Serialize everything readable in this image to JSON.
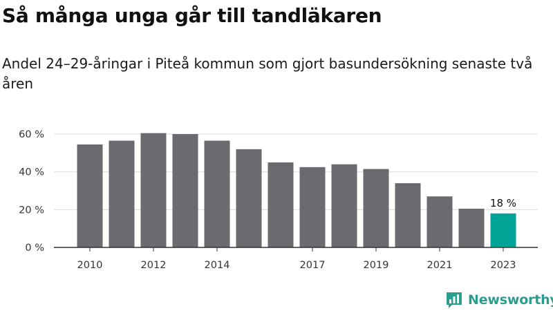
{
  "title": "Så många unga går till tandläkaren",
  "subtitle": "Andel 24–29-åringar i Piteå kommun som gjort basundersökning senaste två åren",
  "brand": {
    "name": "Newsworthy",
    "icon": "newsworthy-logo-icon",
    "color": "#2a9d8f"
  },
  "chart_data": {
    "type": "bar",
    "x": [
      2010,
      2011,
      2012,
      2013,
      2014,
      2015,
      2016,
      2017,
      2018,
      2019,
      2020,
      2021,
      2022,
      2023
    ],
    "values": [
      54.5,
      56.5,
      60.5,
      60,
      56.5,
      52,
      45,
      42.5,
      44,
      41.5,
      34,
      27,
      20.5,
      18
    ],
    "x_tick_labels": [
      {
        "x": 2010,
        "label": "2010"
      },
      {
        "x": 2012,
        "label": "2012"
      },
      {
        "x": 2014,
        "label": "2014"
      },
      {
        "x": 2017,
        "label": "2017"
      },
      {
        "x": 2019,
        "label": "2019"
      },
      {
        "x": 2021,
        "label": "2021"
      },
      {
        "x": 2023,
        "label": "2023"
      }
    ],
    "y_ticks": [
      {
        "value": 0,
        "label": "0 %"
      },
      {
        "value": 20,
        "label": "20 %"
      },
      {
        "value": 40,
        "label": "40 %"
      },
      {
        "value": 60,
        "label": "60 %"
      }
    ],
    "ylim": [
      0,
      60
    ],
    "grid": true,
    "bar_color": "#6b6a6f",
    "highlight_color": "#00a396",
    "highlight_x": 2023,
    "data_labels": [
      {
        "x": 2023,
        "label": "18 %"
      }
    ]
  }
}
